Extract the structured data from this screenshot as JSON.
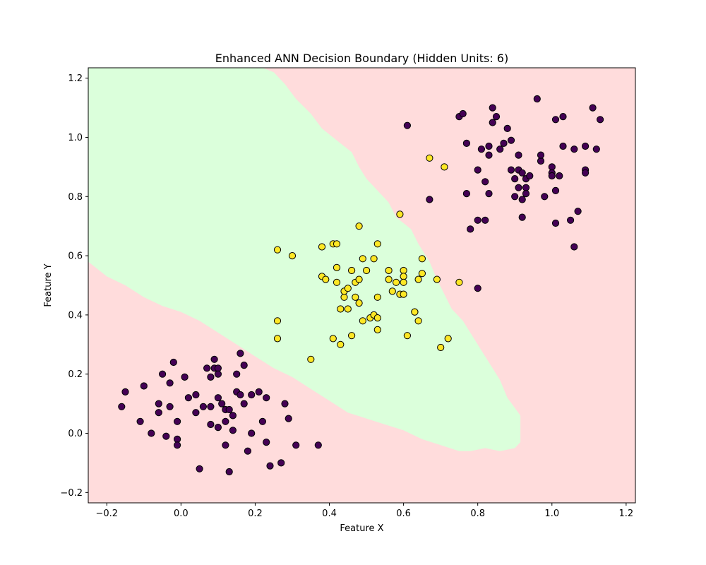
{
  "chart_data": {
    "type": "scatter",
    "title": "Enhanced ANN Decision Boundary (Hidden Units: 6)",
    "xlabel": "Feature X",
    "ylabel": "Feature Y",
    "xlim": [
      -0.25,
      1.225
    ],
    "ylim": [
      -0.235,
      1.235
    ],
    "xticks": [
      -0.2,
      0.0,
      0.2,
      0.4,
      0.6,
      0.8,
      1.0,
      1.2
    ],
    "yticks": [
      -0.2,
      0.0,
      0.2,
      0.4,
      0.6,
      0.8,
      1.0,
      1.2
    ],
    "xtick_labels": [
      "−0.2",
      "0.0",
      "0.2",
      "0.4",
      "0.6",
      "0.8",
      "1.0",
      "1.2"
    ],
    "ytick_labels": [
      "−0.2",
      "0.0",
      "0.2",
      "0.4",
      "0.6",
      "0.8",
      "1.0",
      "1.2"
    ],
    "grid": false,
    "legend": "none",
    "colors": {
      "region_class0": "#ffdcdc",
      "region_class1": "#dbffdb",
      "class0_point": "#440154",
      "class1_point": "#fde725",
      "point_edge": "#000000"
    },
    "decision_region_class1": [
      [
        -0.25,
        0.58
      ],
      [
        -0.2,
        0.53
      ],
      [
        -0.15,
        0.5
      ],
      [
        -0.1,
        0.46
      ],
      [
        -0.05,
        0.43
      ],
      [
        0.0,
        0.41
      ],
      [
        0.05,
        0.38
      ],
      [
        0.1,
        0.34
      ],
      [
        0.15,
        0.3
      ],
      [
        0.2,
        0.26
      ],
      [
        0.25,
        0.22
      ],
      [
        0.3,
        0.19
      ],
      [
        0.35,
        0.15
      ],
      [
        0.4,
        0.11
      ],
      [
        0.45,
        0.07
      ],
      [
        0.5,
        0.05
      ],
      [
        0.55,
        0.03
      ],
      [
        0.6,
        0.01
      ],
      [
        0.65,
        -0.02
      ],
      [
        0.7,
        -0.04
      ],
      [
        0.75,
        -0.06
      ],
      [
        0.78,
        -0.06
      ],
      [
        0.82,
        -0.05
      ],
      [
        0.86,
        -0.06
      ],
      [
        0.9,
        -0.05
      ],
      [
        0.915,
        -0.03
      ],
      [
        0.915,
        0.06
      ],
      [
        0.88,
        0.12
      ],
      [
        0.86,
        0.18
      ],
      [
        0.84,
        0.22
      ],
      [
        0.81,
        0.28
      ],
      [
        0.79,
        0.32
      ],
      [
        0.76,
        0.38
      ],
      [
        0.73,
        0.42
      ],
      [
        0.71,
        0.47
      ],
      [
        0.69,
        0.52
      ],
      [
        0.67,
        0.58
      ],
      [
        0.64,
        0.64
      ],
      [
        0.62,
        0.69
      ],
      [
        0.58,
        0.73
      ],
      [
        0.56,
        0.78
      ],
      [
        0.53,
        0.82
      ],
      [
        0.5,
        0.86
      ],
      [
        0.48,
        0.9
      ],
      [
        0.46,
        0.95
      ],
      [
        0.42,
        0.99
      ],
      [
        0.38,
        1.03
      ],
      [
        0.35,
        1.08
      ],
      [
        0.31,
        1.13
      ],
      [
        0.28,
        1.18
      ],
      [
        0.25,
        1.22
      ],
      [
        0.22,
        1.235
      ],
      [
        -0.25,
        1.235
      ]
    ],
    "series": [
      {
        "class": 0,
        "points": [
          [
            -0.16,
            0.09
          ],
          [
            -0.15,
            0.14
          ],
          [
            -0.11,
            0.04
          ],
          [
            -0.1,
            0.16
          ],
          [
            -0.08,
            0.0
          ],
          [
            -0.06,
            0.1
          ],
          [
            -0.06,
            0.07
          ],
          [
            -0.05,
            0.2
          ],
          [
            -0.04,
            -0.01
          ],
          [
            -0.03,
            0.17
          ],
          [
            -0.03,
            0.09
          ],
          [
            -0.02,
            0.24
          ],
          [
            -0.01,
            0.04
          ],
          [
            -0.01,
            -0.02
          ],
          [
            -0.01,
            -0.04
          ],
          [
            0.01,
            0.19
          ],
          [
            0.02,
            0.12
          ],
          [
            0.04,
            0.07
          ],
          [
            0.04,
            0.13
          ],
          [
            0.05,
            -0.12
          ],
          [
            0.06,
            0.09
          ],
          [
            0.07,
            0.22
          ],
          [
            0.08,
            0.19
          ],
          [
            0.08,
            0.09
          ],
          [
            0.08,
            0.03
          ],
          [
            0.09,
            0.22
          ],
          [
            0.09,
            0.25
          ],
          [
            0.1,
            0.22
          ],
          [
            0.1,
            0.2
          ],
          [
            0.1,
            0.12
          ],
          [
            0.1,
            0.02
          ],
          [
            0.11,
            0.1
          ],
          [
            0.12,
            0.08
          ],
          [
            0.12,
            0.04
          ],
          [
            0.12,
            -0.04
          ],
          [
            0.13,
            0.08
          ],
          [
            0.13,
            -0.13
          ],
          [
            0.14,
            0.06
          ],
          [
            0.14,
            0.01
          ],
          [
            0.15,
            0.2
          ],
          [
            0.15,
            0.14
          ],
          [
            0.16,
            0.27
          ],
          [
            0.16,
            0.13
          ],
          [
            0.17,
            0.23
          ],
          [
            0.17,
            0.1
          ],
          [
            0.18,
            -0.06
          ],
          [
            0.19,
            0.13
          ],
          [
            0.19,
            0.0
          ],
          [
            0.21,
            0.14
          ],
          [
            0.22,
            0.04
          ],
          [
            0.23,
            -0.03
          ],
          [
            0.23,
            0.12
          ],
          [
            0.24,
            -0.11
          ],
          [
            0.27,
            -0.1
          ],
          [
            0.28,
            0.1
          ],
          [
            0.29,
            0.05
          ],
          [
            0.31,
            -0.04
          ],
          [
            0.37,
            -0.04
          ],
          [
            0.61,
            1.04
          ],
          [
            0.67,
            0.79
          ],
          [
            0.75,
            1.07
          ],
          [
            0.76,
            1.08
          ],
          [
            0.77,
            0.98
          ],
          [
            0.77,
            0.81
          ],
          [
            0.78,
            0.69
          ],
          [
            0.8,
            0.89
          ],
          [
            0.8,
            0.72
          ],
          [
            0.8,
            0.49
          ],
          [
            0.81,
            0.96
          ],
          [
            0.82,
            0.85
          ],
          [
            0.82,
            0.72
          ],
          [
            0.83,
            0.81
          ],
          [
            0.83,
            0.94
          ],
          [
            0.83,
            0.97
          ],
          [
            0.84,
            1.1
          ],
          [
            0.84,
            1.05
          ],
          [
            0.85,
            1.07
          ],
          [
            0.86,
            0.96
          ],
          [
            0.87,
            0.98
          ],
          [
            0.88,
            1.03
          ],
          [
            0.89,
            0.99
          ],
          [
            0.89,
            0.89
          ],
          [
            0.9,
            0.86
          ],
          [
            0.9,
            0.8
          ],
          [
            0.91,
            0.94
          ],
          [
            0.91,
            0.83
          ],
          [
            0.91,
            0.89
          ],
          [
            0.92,
            0.88
          ],
          [
            0.92,
            0.73
          ],
          [
            0.92,
            0.79
          ],
          [
            0.93,
            0.86
          ],
          [
            0.93,
            0.83
          ],
          [
            0.93,
            0.81
          ],
          [
            0.94,
            0.87
          ],
          [
            0.96,
            1.13
          ],
          [
            0.97,
            0.92
          ],
          [
            0.97,
            0.94
          ],
          [
            0.98,
            0.8
          ],
          [
            1.0,
            0.9
          ],
          [
            1.0,
            0.88
          ],
          [
            1.0,
            0.87
          ],
          [
            1.01,
            0.82
          ],
          [
            1.01,
            0.71
          ],
          [
            1.01,
            1.06
          ],
          [
            1.02,
            0.87
          ],
          [
            1.03,
            0.97
          ],
          [
            1.03,
            1.07
          ],
          [
            1.05,
            0.72
          ],
          [
            1.06,
            0.96
          ],
          [
            1.06,
            0.63
          ],
          [
            1.07,
            0.75
          ],
          [
            1.09,
            0.97
          ],
          [
            1.09,
            0.89
          ],
          [
            1.09,
            0.88
          ],
          [
            1.11,
            1.1
          ],
          [
            1.12,
            0.96
          ],
          [
            1.13,
            1.06
          ]
        ]
      },
      {
        "class": 1,
        "points": [
          [
            0.26,
            0.62
          ],
          [
            0.26,
            0.38
          ],
          [
            0.26,
            0.32
          ],
          [
            0.3,
            0.6
          ],
          [
            0.35,
            0.25
          ],
          [
            0.38,
            0.63
          ],
          [
            0.38,
            0.53
          ],
          [
            0.39,
            0.52
          ],
          [
            0.41,
            0.64
          ],
          [
            0.41,
            0.32
          ],
          [
            0.42,
            0.64
          ],
          [
            0.42,
            0.56
          ],
          [
            0.42,
            0.51
          ],
          [
            0.43,
            0.42
          ],
          [
            0.43,
            0.3
          ],
          [
            0.44,
            0.46
          ],
          [
            0.44,
            0.48
          ],
          [
            0.45,
            0.49
          ],
          [
            0.45,
            0.42
          ],
          [
            0.46,
            0.55
          ],
          [
            0.46,
            0.33
          ],
          [
            0.47,
            0.51
          ],
          [
            0.47,
            0.46
          ],
          [
            0.48,
            0.7
          ],
          [
            0.48,
            0.52
          ],
          [
            0.48,
            0.44
          ],
          [
            0.49,
            0.59
          ],
          [
            0.49,
            0.38
          ],
          [
            0.5,
            0.55
          ],
          [
            0.51,
            0.39
          ],
          [
            0.52,
            0.59
          ],
          [
            0.52,
            0.4
          ],
          [
            0.53,
            0.64
          ],
          [
            0.53,
            0.46
          ],
          [
            0.53,
            0.39
          ],
          [
            0.53,
            0.35
          ],
          [
            0.56,
            0.55
          ],
          [
            0.56,
            0.52
          ],
          [
            0.57,
            0.48
          ],
          [
            0.58,
            0.51
          ],
          [
            0.59,
            0.74
          ],
          [
            0.59,
            0.47
          ],
          [
            0.6,
            0.55
          ],
          [
            0.6,
            0.53
          ],
          [
            0.6,
            0.51
          ],
          [
            0.6,
            0.47
          ],
          [
            0.61,
            0.33
          ],
          [
            0.63,
            0.41
          ],
          [
            0.63,
            0.41
          ],
          [
            0.64,
            0.52
          ],
          [
            0.64,
            0.38
          ],
          [
            0.65,
            0.59
          ],
          [
            0.65,
            0.54
          ],
          [
            0.67,
            0.93
          ],
          [
            0.69,
            0.52
          ],
          [
            0.7,
            0.29
          ],
          [
            0.71,
            0.9
          ],
          [
            0.72,
            0.32
          ],
          [
            0.75,
            0.51
          ]
        ]
      }
    ]
  }
}
